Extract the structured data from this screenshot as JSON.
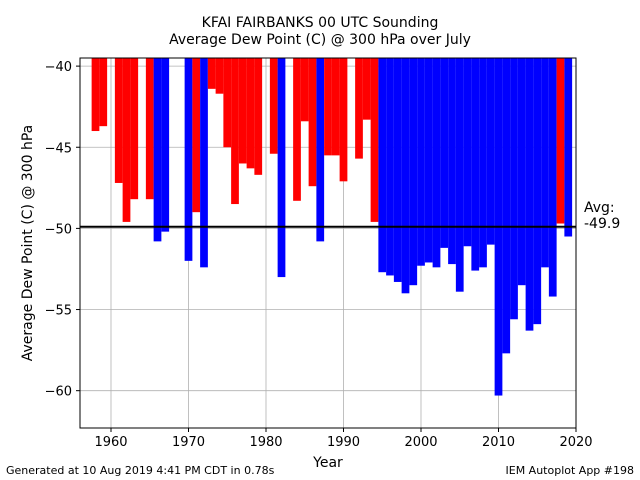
{
  "chart_data": {
    "type": "bar",
    "title": "KFAI FAIRBANKS 00 UTC Sounding",
    "subtitle": "Average Dew Point (C) @ 300 hPa over July",
    "xlabel": "Year",
    "ylabel": "Average Dew Point (C) @ 300 hPa",
    "xlim": [
      1956,
      2020
    ],
    "ylim": [
      -62.3,
      -39.5
    ],
    "x_ticks": [
      1960,
      1970,
      1980,
      1990,
      2000,
      2010,
      2020
    ],
    "y_ticks": [
      -40,
      -45,
      -50,
      -55,
      -60
    ],
    "grid": true,
    "average": -49.9,
    "average_label": "Avg:\n-49.9",
    "colors": {
      "above": "#ff0000",
      "below": "#0000ff",
      "average_line": "#000000"
    },
    "years": [
      1958,
      1959,
      1961,
      1962,
      1963,
      1965,
      1966,
      1967,
      1970,
      1971,
      1972,
      1973,
      1974,
      1975,
      1976,
      1977,
      1978,
      1979,
      1981,
      1982,
      1984,
      1985,
      1986,
      1987,
      1988,
      1989,
      1990,
      1992,
      1993,
      1994,
      1995,
      1996,
      1997,
      1998,
      1999,
      2000,
      2001,
      2002,
      2003,
      2004,
      2005,
      2006,
      2007,
      2008,
      2009,
      2010,
      2011,
      2012,
      2013,
      2014,
      2015,
      2016,
      2017,
      2018,
      2019
    ],
    "values": [
      -44.0,
      -43.7,
      -47.2,
      -49.6,
      -48.2,
      -48.2,
      -50.8,
      -50.2,
      -52.0,
      -49.0,
      -52.4,
      -41.4,
      -41.7,
      -45.0,
      -48.5,
      -46.0,
      -46.3,
      -46.7,
      -45.4,
      -53.0,
      -48.3,
      -43.4,
      -47.4,
      -50.8,
      -45.5,
      -45.5,
      -47.1,
      -45.7,
      -43.3,
      -49.6,
      -52.7,
      -52.9,
      -53.3,
      -54.0,
      -53.5,
      -52.3,
      -52.1,
      -52.4,
      -51.2,
      -52.2,
      -53.9,
      -51.1,
      -52.6,
      -52.4,
      -51.0,
      -60.3,
      -57.7,
      -55.6,
      -53.5,
      -56.3,
      -55.9,
      -52.4,
      -54.2,
      -49.7,
      -50.5
    ]
  },
  "footer": {
    "left": "Generated at 10 Aug 2019 4:41 PM CDT in 0.78s",
    "right": "IEM Autoplot App #198"
  }
}
